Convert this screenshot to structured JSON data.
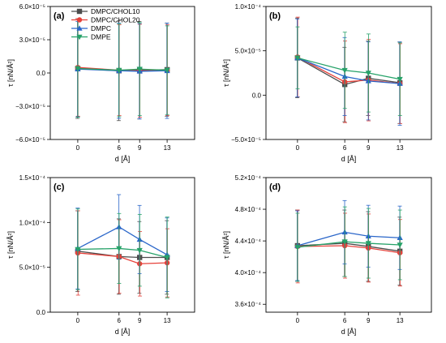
{
  "colors": {
    "DMPC/CHOL10": "#4d4d4d",
    "DMPC/CHOL20": "#e6413a",
    "DMPC": "#2a66c9",
    "DMPE": "#26a269"
  },
  "legend": {
    "placement": "top-left of panel (a)",
    "entries": [
      {
        "name": "DMPC/CHOL10",
        "marker": "square"
      },
      {
        "name": "DMPC/CHOL20",
        "marker": "circle"
      },
      {
        "name": "DMPC",
        "marker": "triangle-up"
      },
      {
        "name": "DMPE",
        "marker": "triangle-down"
      }
    ]
  },
  "chart_data": [
    {
      "type": "line",
      "letter": "(a)",
      "xlabel": "d [Å]",
      "ylabel": "τ [nN/Å²]",
      "x": [
        0,
        6,
        9,
        13
      ],
      "xticks": [
        0,
        6,
        9,
        13
      ],
      "xtick_labels": [
        "0",
        "6",
        "9",
        "13"
      ],
      "xlim": [
        -4,
        17
      ],
      "ylim": [
        -6e-05,
        6e-05
      ],
      "yticks": [
        -6e-05,
        -3e-05,
        0,
        3e-05,
        6e-05
      ],
      "ytick_labels": [
        "−6.0×10⁻⁵",
        "−3.0×10⁻⁵",
        "0.0",
        "3.0×10⁻⁵",
        "6.0×10⁻⁵"
      ],
      "grid": false,
      "series": [
        {
          "name": "DMPC/CHOL10",
          "values": [
            4e-06,
            2e-06,
            2.5e-06,
            3e-06
          ],
          "err": [
            4.5e-05,
            4.5e-05,
            4.4e-05,
            4.2e-05
          ]
        },
        {
          "name": "DMPC/CHOL20",
          "values": [
            5e-06,
            2.5e-06,
            2e-06,
            2.5e-06
          ],
          "err": [
            4.4e-05,
            4.1e-05,
            4.2e-05,
            4.1e-05
          ]
        },
        {
          "name": "DMPC",
          "values": [
            3.5e-06,
            2e-06,
            1.5e-06,
            2e-06
          ],
          "err": [
            4.3e-05,
            4.3e-05,
            4.3e-05,
            4.3e-05
          ]
        },
        {
          "name": "DMPE",
          "values": [
            4e-06,
            2.5e-06,
            3.5e-06,
            2.5e-06
          ],
          "err": [
            4.4e-05,
            4.2e-05,
            4.2e-05,
            4e-05
          ]
        }
      ]
    },
    {
      "type": "line",
      "letter": "(b)",
      "xlabel": "d [Å]",
      "ylabel": "τ [nN/Å²]",
      "x": [
        0,
        6,
        9,
        13
      ],
      "xticks": [
        0,
        6,
        9,
        13
      ],
      "xtick_labels": [
        "0",
        "6",
        "9",
        "13"
      ],
      "xlim": [
        -4,
        17
      ],
      "ylim": [
        -5e-05,
        0.0001
      ],
      "yticks": [
        -5e-05,
        0,
        5e-05,
        0.0001
      ],
      "ytick_labels": [
        "−5.0×10⁻⁵",
        "0.0",
        "5.0×10⁻⁵",
        "1.0×10⁻⁴"
      ],
      "grid": false,
      "series": [
        {
          "name": "DMPC/CHOL10",
          "values": [
            4.2e-05,
            1.2e-05,
            1.9e-05,
            1.4e-05
          ],
          "err": [
            4.5e-05,
            4.2e-05,
            4.2e-05,
            4.6e-05
          ]
        },
        {
          "name": "DMPC/CHOL20",
          "values": [
            4.3e-05,
            1.5e-05,
            1.7e-05,
            1.3e-05
          ],
          "err": [
            4.5e-05,
            4.6e-05,
            4.6e-05,
            4.5e-05
          ]
        },
        {
          "name": "DMPC",
          "values": [
            4.2e-05,
            2.1e-05,
            1.6e-05,
            1.3e-05
          ],
          "err": [
            4.4e-05,
            4.4e-05,
            4.4e-05,
            4.7e-05
          ]
        },
        {
          "name": "DMPE",
          "values": [
            4.2e-05,
            2.8e-05,
            2.5e-05,
            1.8e-05
          ],
          "err": [
            3.5e-05,
            4.3e-05,
            4.4e-05,
            4.1e-05
          ]
        }
      ]
    },
    {
      "type": "line",
      "letter": "(c)",
      "xlabel": "d [Å]",
      "ylabel": "τ [nN/Å²]",
      "x": [
        0,
        6,
        9,
        13
      ],
      "xticks": [
        0,
        6,
        9,
        13
      ],
      "xtick_labels": [
        "0",
        "6",
        "9",
        "13"
      ],
      "xlim": [
        -4,
        17
      ],
      "ylim": [
        0,
        0.00015
      ],
      "yticks": [
        0,
        5e-05,
        0.0001,
        0.00015
      ],
      "ytick_labels": [
        "0.0",
        "5.0×10⁻⁵",
        "1.0×10⁻⁴",
        "1.5×10⁻⁴"
      ],
      "grid": false,
      "series": [
        {
          "name": "DMPC/CHOL10",
          "values": [
            6.8e-05,
            6.2e-05,
            6.1e-05,
            6.1e-05
          ],
          "err": [
            4.5e-05,
            4.2e-05,
            4e-05,
            4.1e-05
          ]
        },
        {
          "name": "DMPC/CHOL20",
          "values": [
            6.6e-05,
            6.2e-05,
            5.4e-05,
            5.5e-05
          ],
          "err": [
            4.7e-05,
            4.1e-05,
            3.6e-05,
            3.8e-05
          ]
        },
        {
          "name": "DMPC",
          "values": [
            7.1e-05,
            9.5e-05,
            8.1e-05,
            6.4e-05
          ],
          "err": [
            4.5e-05,
            3.6e-05,
            3.8e-05,
            4.1e-05
          ]
        },
        {
          "name": "DMPE",
          "values": [
            7e-05,
            7.1e-05,
            6.9e-05,
            6.1e-05
          ],
          "err": [
            4.5e-05,
            3.9e-05,
            4e-05,
            4.5e-05
          ]
        }
      ]
    },
    {
      "type": "line",
      "letter": "(d)",
      "xlabel": "d [Å]",
      "ylabel": "τ [nN/Å²]",
      "x": [
        0,
        6,
        9,
        13
      ],
      "xticks": [
        0,
        6,
        9,
        13
      ],
      "xtick_labels": [
        "0",
        "6",
        "9",
        "13"
      ],
      "xlim": [
        -4,
        17
      ],
      "ylim": [
        0.00035,
        0.00052
      ],
      "yticks": [
        0.00036,
        0.0004,
        0.00044,
        0.00048,
        0.00052
      ],
      "ytick_labels": [
        "3.6×10⁻⁴",
        "4.0×10⁻⁴",
        "4.4×10⁻⁴",
        "4.8×10⁻⁴",
        "5.2×10⁻⁴"
      ],
      "grid": false,
      "series": [
        {
          "name": "DMPC/CHOL10",
          "values": [
            0.000434,
            0.000437,
            0.000433,
            0.000427
          ],
          "err": [
            4.5e-05,
            4.2e-05,
            4.4e-05,
            4.3e-05
          ]
        },
        {
          "name": "DMPC/CHOL20",
          "values": [
            0.000433,
            0.000434,
            0.000431,
            0.000425
          ],
          "err": [
            4.6e-05,
            4.1e-05,
            4.3e-05,
            4.2e-05
          ]
        },
        {
          "name": "DMPC",
          "values": [
            0.000434,
            0.000451,
            0.000446,
            0.000444
          ],
          "err": [
            4.4e-05,
            4e-05,
            3.9e-05,
            4e-05
          ]
        },
        {
          "name": "DMPE",
          "values": [
            0.000432,
            0.000439,
            0.000437,
            0.000435
          ],
          "err": [
            4.3e-05,
            4.4e-05,
            4.4e-05,
            4.4e-05
          ]
        }
      ]
    }
  ]
}
